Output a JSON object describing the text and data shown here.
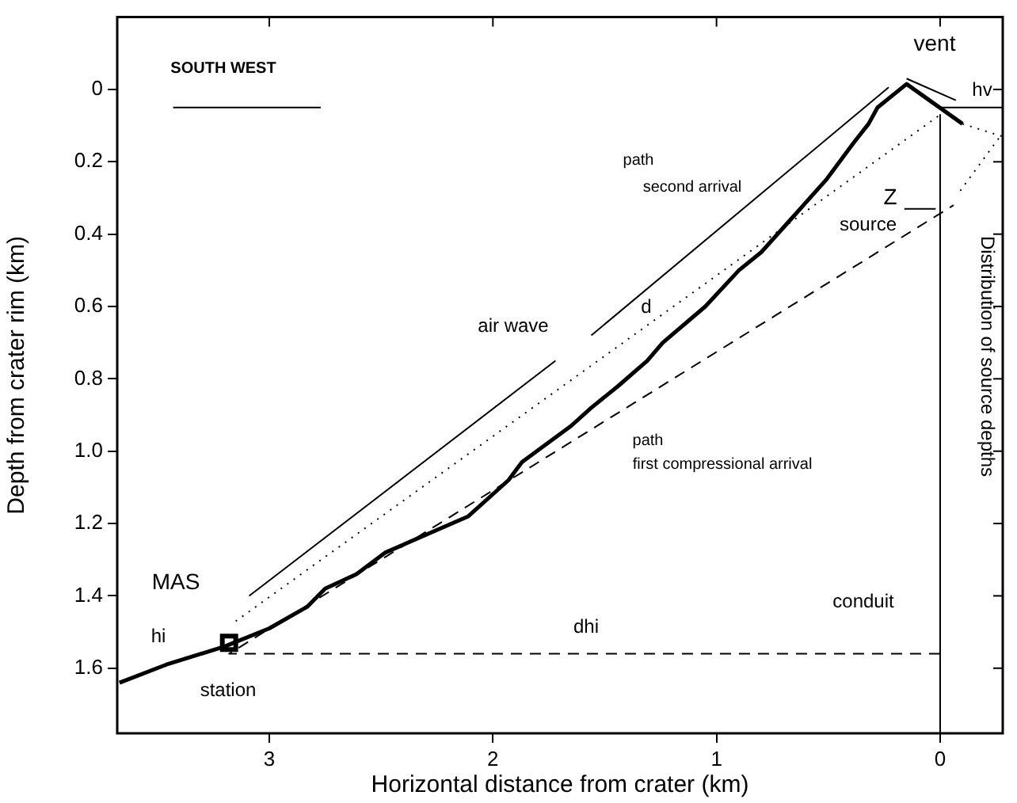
{
  "chart_data": {
    "type": "line",
    "xlabel": "Horizontal distance from crater (km)",
    "ylabel": "Depth from crater rim (km)",
    "xlim": [
      3.68,
      -0.28
    ],
    "ylim": [
      1.78,
      -0.2
    ],
    "xticks": [
      3,
      2,
      1,
      0
    ],
    "yticks": [
      0,
      0.2,
      0.4,
      0.6,
      0.8,
      {
        "value": 1.0,
        "label": "1.0"
      },
      1.2,
      1.4,
      1.6
    ],
    "legend": false,
    "grid": false,
    "marker": "none",
    "series": [
      {
        "color": "#000000",
        "line_style": "solid",
        "x": [
          3.67,
          3.46,
          3.2,
          3.0,
          2.83,
          2.75,
          2.61,
          2.48,
          2.11,
          1.93,
          1.87,
          1.65,
          1.56,
          1.44,
          1.31,
          1.24,
          1.05,
          0.9,
          0.8,
          0.64,
          0.51,
          0.39,
          0.32,
          0.28,
          0.15,
          -0.1
        ],
        "values": [
          1.64,
          1.59,
          1.54,
          1.49,
          1.43,
          1.38,
          1.34,
          1.28,
          1.18,
          1.08,
          1.03,
          0.93,
          0.88,
          0.82,
          0.75,
          0.7,
          0.6,
          0.5,
          0.45,
          0.34,
          0.25,
          0.15,
          0.095,
          0.05,
          -0.015,
          0.095
        ]
      },
      {
        "color": "#000000",
        "line_style": "dashed",
        "x": [
          0,
          3.18,
          -0.06
        ],
        "values": [
          1.56,
          1.56,
          0.32
        ]
      },
      {
        "color": "#000000",
        "line_style": "dotted",
        "x": [
          3.15,
          0
        ],
        "values": [
          1.47,
          0.07
        ]
      },
      {
        "color": "#000000",
        "line_style": "dotted",
        "x": [
          -0.1,
          -0.28
        ],
        "values": [
          0.095,
          0.13
        ]
      },
      {
        "color": "#000000",
        "line_style": "dotted",
        "x": [
          -0.09,
          -0.28
        ],
        "values": [
          0.28,
          0.12
        ]
      },
      {
        "color": "#000000",
        "line_style": "solid",
        "x": [
          0,
          0
        ],
        "values": [
          0.07,
          1.78
        ]
      },
      {
        "color": "#000000",
        "line_style": "solid",
        "x": [
          0,
          -0.28
        ],
        "values": [
          0.05,
          0.05
        ]
      },
      {
        "color": "#000000",
        "line_style": "solid",
        "x": [
          1.72,
          3.09
        ],
        "values": [
          0.75,
          1.4
        ]
      },
      {
        "color": "#000000",
        "line_style": "solid",
        "x": [
          0.23,
          1.56
        ],
        "values": [
          -0.006,
          0.68
        ]
      },
      {
        "color": "#000000",
        "line_style": "solid",
        "x": [
          2.77,
          3.43
        ],
        "values": [
          0.05,
          0.05
        ]
      },
      {
        "color": "#000000",
        "line_style": "solid",
        "x": [
          -0.07,
          0.15
        ],
        "values": [
          0.03,
          -0.03
        ]
      },
      {
        "color": "#000000",
        "line_style": "solid",
        "x": [
          0.16,
          0.02
        ],
        "values": [
          0.33,
          0.33
        ]
      },
      {
        "type": "scatter",
        "color": "#000000",
        "marker": "square",
        "x": [
          3.18
        ],
        "values": [
          1.53
        ]
      }
    ],
    "annotations": [
      "vent",
      "hv",
      "SOUTH WEST",
      "path",
      "second arrival",
      "Z",
      "source",
      "d",
      "air wave",
      "Distribution of source depths",
      "path",
      "first compressional arrival",
      "MAS",
      "hi",
      "dhi",
      "conduit",
      "station"
    ]
  }
}
